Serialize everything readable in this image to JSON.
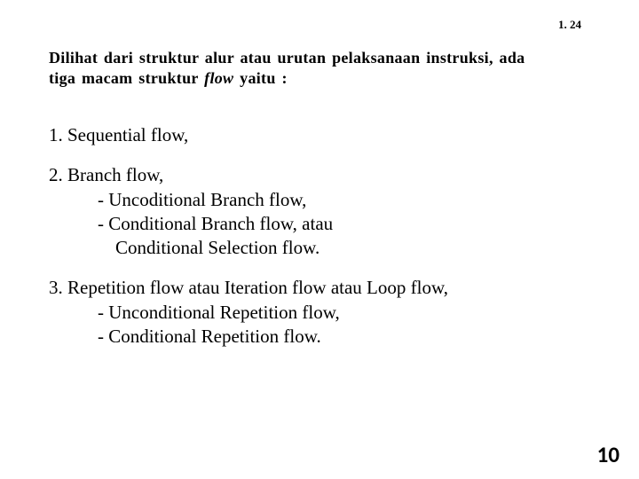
{
  "header": {
    "chapter_page": "1.  24"
  },
  "intro": {
    "line1_part1": "Dilihat dari struktur alur atau urutan pelaksanaan instruksi, ada",
    "line2_part1": "tiga macam struktur ",
    "line2_italic": "flow",
    "line2_part2": "  yaitu :"
  },
  "item1": {
    "text": "1.  Sequential flow,"
  },
  "item2": {
    "main": "2. Branch flow,",
    "sub1": "- Uncoditional Branch flow,",
    "sub2": "- Conditional Branch flow, atau",
    "sub3": "Conditional Selection flow."
  },
  "item3": {
    "main": "3. Repetition flow atau Iteration flow atau Loop flow,",
    "sub1": "- Unconditional Repetition flow,",
    "sub2": "- Conditional Repetition flow."
  },
  "footer": {
    "page_number": "10"
  },
  "styling": {
    "background_color": "#ffffff",
    "text_color": "#000000",
    "intro_fontsize": 18,
    "list_fontsize": 21,
    "header_fontsize": 13,
    "page_number_fontsize": 25,
    "font_family_body": "Times New Roman",
    "font_family_pagenum": "Calibri"
  }
}
